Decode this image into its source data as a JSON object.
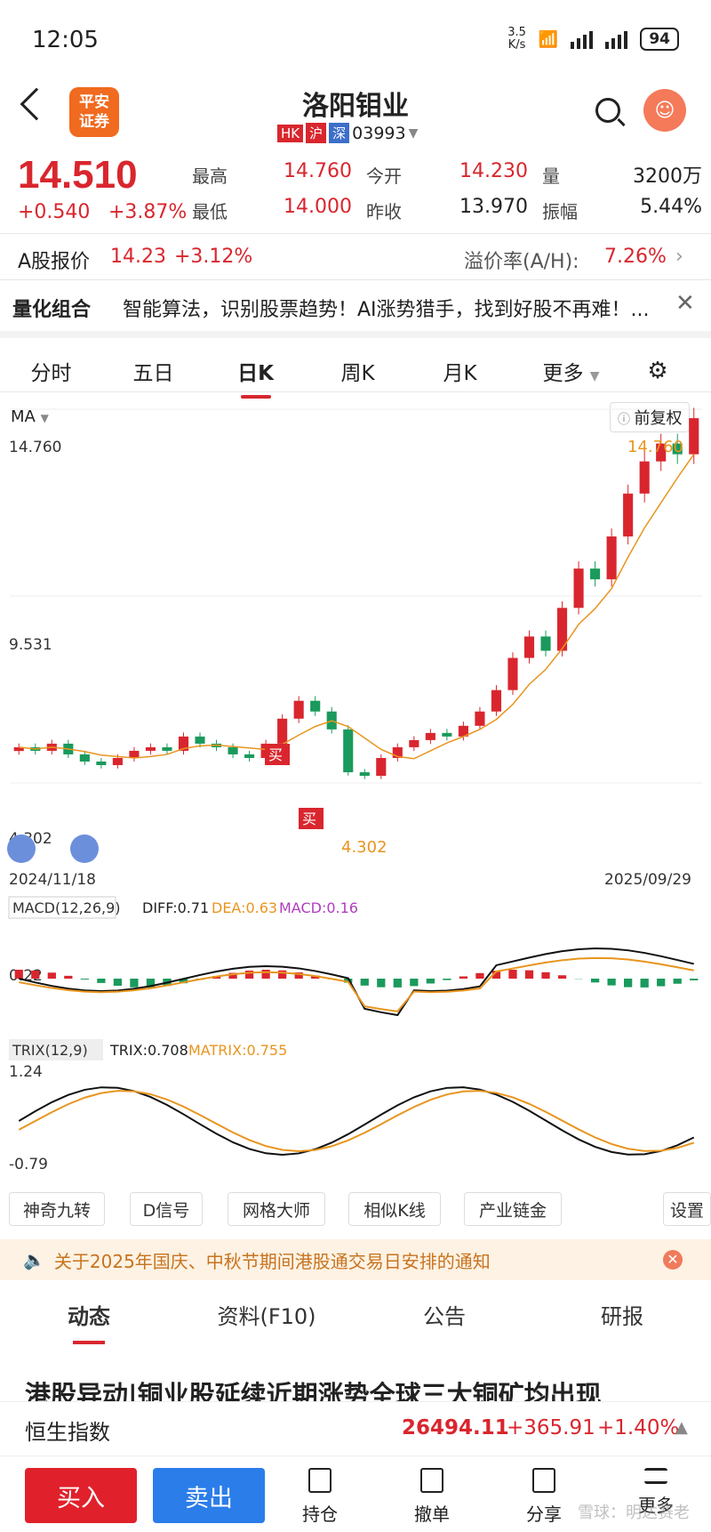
{
  "status": {
    "time": "12:05",
    "speed_top": "3.5",
    "speed_bottom": "K/s",
    "battery": "94"
  },
  "header": {
    "logo_line1": "平安",
    "logo_line2": "证券",
    "title": "洛阳钼业",
    "tags": [
      "HK",
      "沪",
      "深"
    ],
    "code": "03993"
  },
  "quote": {
    "price": "14.510",
    "change": "+0.540",
    "change_pct": "+3.87%",
    "high_label": "最高",
    "high": "14.760",
    "open_label": "今开",
    "open": "14.230",
    "vol_label": "量",
    "vol": "3200万",
    "low_label": "最低",
    "low": "14.000",
    "prev_label": "昨收",
    "prev": "13.970",
    "amp_label": "振幅",
    "amp": "5.44%"
  },
  "ashare": {
    "label": "A股报价",
    "price": "14.23",
    "pct": "+3.12%",
    "premium_label": "溢价率(A/H):",
    "premium": "7.26%"
  },
  "promo": {
    "title": "量化组合",
    "text": "智能算法，识别股票趋势！AI涨势猎手，找到好股不再难！..."
  },
  "period_tabs": [
    "分时",
    "五日",
    "日K",
    "周K",
    "月K",
    "更多"
  ],
  "chart_header": {
    "ma": "MA",
    "restore": "前复权"
  },
  "chart_data": {
    "type": "candlestick",
    "title": "",
    "x_range": [
      "2024/11/18",
      "2025/09/29"
    ],
    "y_labels": [
      "14.760",
      "9.531",
      "4.302"
    ],
    "high_annotation": "14.760",
    "low_annotation": "4.302",
    "buy_signal": "买",
    "series": [
      {
        "name": "close",
        "values": [
          5.3,
          5.2,
          5.4,
          5.1,
          4.9,
          4.8,
          5.0,
          5.2,
          5.3,
          5.2,
          5.6,
          5.4,
          5.3,
          5.1,
          5.0,
          5.4,
          6.1,
          6.6,
          6.3,
          5.8,
          4.6,
          4.5,
          5.0,
          5.3,
          5.5,
          5.7,
          5.6,
          5.9,
          6.3,
          6.9,
          7.8,
          8.4,
          8.0,
          9.2,
          10.3,
          10.0,
          11.2,
          12.4,
          13.3,
          13.8,
          13.5,
          14.51
        ]
      }
    ],
    "ylim": [
      4.302,
      14.76
    ]
  },
  "macd": {
    "label": "MACD(12,26,9)",
    "diff": "DIFF:0.71",
    "dea": "DEA:0.63",
    "macd": "MACD:0.16",
    "level": "0.22"
  },
  "trix": {
    "label": "TRIX(12,9)",
    "trix": "TRIX:0.708",
    "matrix": "MATRIX:0.755",
    "top": "1.24",
    "bottom": "-0.79"
  },
  "tools": [
    "神奇九转",
    "D信号",
    "网格大师",
    "相似K线",
    "产业链金",
    "设置"
  ],
  "notice": "关于2025年国庆、中秋节期间港股通交易日安排的通知",
  "news_tabs": [
    "动态",
    "资料(F10)",
    "公告",
    "研报"
  ],
  "headline": "港股异动|铜业股延续近期涨势全球三大铜矿均出现",
  "index": {
    "name": "恒生指数",
    "value": "26494.11",
    "change": "+365.91",
    "pct": "+1.40%"
  },
  "bottom": {
    "buy": "买入",
    "sell": "卖出",
    "nav": [
      "持仓",
      "撤单",
      "分享",
      "更多"
    ],
    "watermark": "雪球：明达赛老"
  },
  "colors": {
    "up": "#d9262e",
    "down": "#1a9a5c",
    "ma": "#e8951e"
  }
}
